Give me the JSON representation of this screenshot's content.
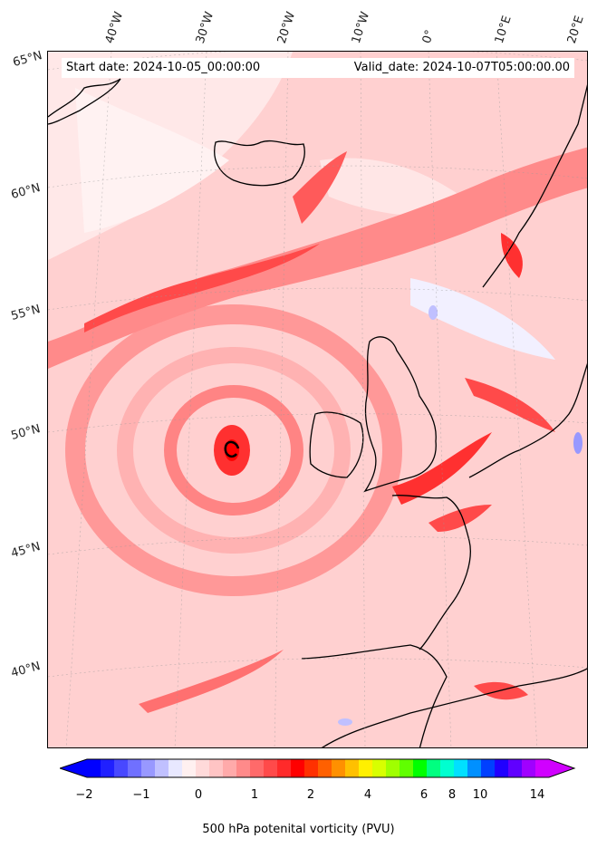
{
  "header": {
    "start_date": "Start date: 2024-10-05_00:00:00",
    "valid_date": "Valid_date: 2024-10-07T05:00:00.00"
  },
  "map": {
    "lon_labels": [
      "40°W",
      "30°W",
      "20°W",
      "10°W",
      "0°",
      "10°E",
      "20°E"
    ],
    "lat_labels": [
      "65°N",
      "60°N",
      "55°N",
      "50°N",
      "45°N",
      "40°N"
    ],
    "field": "500 hPa potential vorticity",
    "feature": "cyclone-center"
  },
  "colorbar": {
    "label": "500 hPa potenital vorticity (PVU)",
    "ticks": [
      "−2",
      "−1",
      "0",
      "1",
      "2",
      "4",
      "6",
      "8",
      "10",
      "14"
    ],
    "colors": [
      "#0000ff",
      "#2020ff",
      "#4848ff",
      "#7070ff",
      "#9898ff",
      "#c0c0ff",
      "#e8e8ff",
      "#fff0f0",
      "#ffdada",
      "#ffc4c4",
      "#ffaaaa",
      "#ff8a8a",
      "#ff6a6a",
      "#ff4a4a",
      "#ff2a2a",
      "#ff0000",
      "#ff3000",
      "#ff6000",
      "#ff9000",
      "#ffc000",
      "#fff000",
      "#d8ff00",
      "#a0ff00",
      "#60ff00",
      "#00ff00",
      "#00ff80",
      "#00ffd0",
      "#00e0ff",
      "#0090ff",
      "#0040ff",
      "#2000ff",
      "#6000ff",
      "#a000ff",
      "#d000ff"
    ]
  }
}
